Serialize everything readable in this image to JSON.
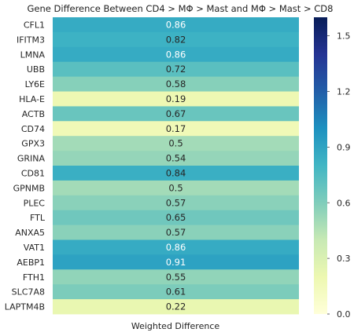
{
  "chart_data": {
    "type": "heatmap",
    "title": "Gene Difference Between CD4 > MΦ > Mast and MΦ > Mast > CD8",
    "xlabel": "Weighted Difference",
    "ylabel": "",
    "columns": [
      "Weighted Difference"
    ],
    "rows": [
      "CFL1",
      "IFITM3",
      "LMNA",
      "UBB",
      "LY6E",
      "HLA-E",
      "ACTB",
      "CD74",
      "GPX3",
      "GRINA",
      "CD81",
      "GPNMB",
      "PLEC",
      "FTL",
      "ANXA5",
      "VAT1",
      "AEBP1",
      "FTH1",
      "SLC7A8",
      "LAPTM4B"
    ],
    "values": [
      0.86,
      0.82,
      0.86,
      0.72,
      0.58,
      0.19,
      0.67,
      0.17,
      0.5,
      0.54,
      0.84,
      0.5,
      0.57,
      0.65,
      0.57,
      0.86,
      0.91,
      0.55,
      0.61,
      0.22
    ],
    "value_labels": [
      "0.86",
      "0.82",
      "0.86",
      "0.72",
      "0.58",
      "0.19",
      "0.67",
      "0.17",
      "0.5",
      "0.54",
      "0.84",
      "0.5",
      "0.57",
      "0.65",
      "0.57",
      "0.86",
      "0.91",
      "0.55",
      "0.61",
      "0.22"
    ],
    "colorbar": {
      "range": [
        0,
        1.6
      ],
      "ticks": [
        0.0,
        0.3,
        0.6,
        0.9,
        1.2,
        1.5
      ],
      "tick_labels": [
        "0.0",
        "0.3",
        "0.6",
        "0.9",
        "1.2",
        "1.5"
      ],
      "colormap": "YlGnBu"
    },
    "grid": false,
    "legend": "colorbar-right"
  }
}
